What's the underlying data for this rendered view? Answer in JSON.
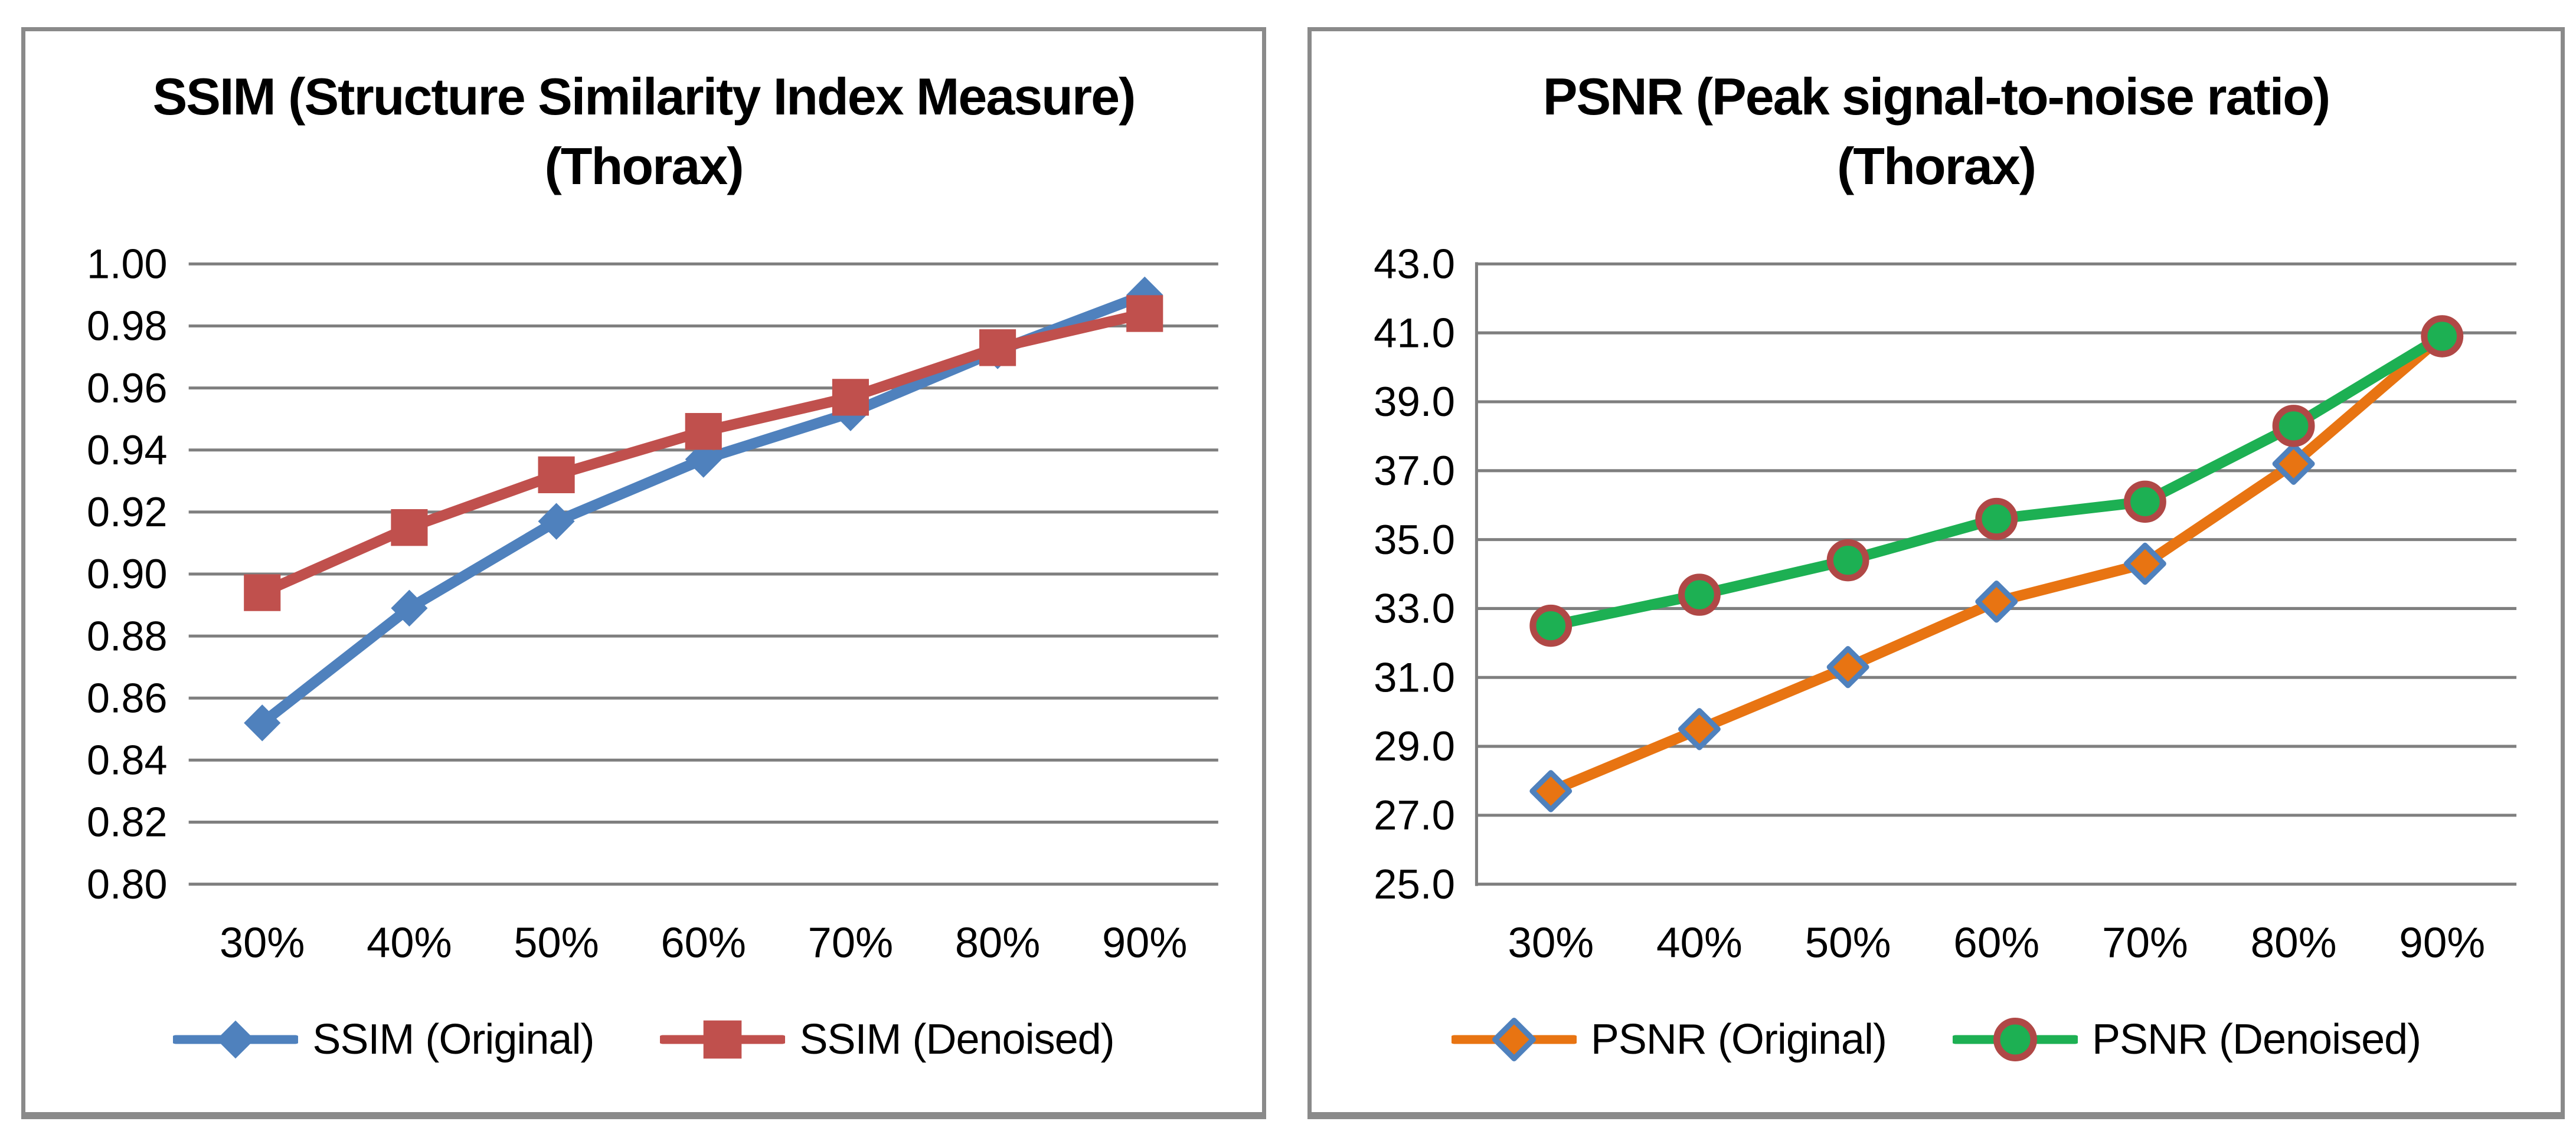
{
  "page": {
    "background": "#ffffff",
    "panel_border_color": "#8a8a8a",
    "grid_color": "#7f7f7f",
    "text_color": "#000000"
  },
  "chart_data": [
    {
      "type": "line",
      "title": "SSIM (Structure Similarity Index Measure)",
      "subtitle": "(Thorax)",
      "categories": [
        "30%",
        "40%",
        "50%",
        "60%",
        "70%",
        "80%",
        "90%"
      ],
      "y_ticks": [
        "1.00",
        "0.98",
        "0.96",
        "0.94",
        "0.92",
        "0.90",
        "0.88",
        "0.86",
        "0.84",
        "0.82",
        "0.80"
      ],
      "ylim": [
        0.8,
        1.0
      ],
      "ystep": 0.02,
      "grid": true,
      "y_axis_line": false,
      "legend_position": "bottom",
      "series": [
        {
          "name": "SSIM (Original)",
          "values": [
            0.852,
            0.889,
            0.917,
            0.937,
            0.952,
            0.972,
            0.99
          ],
          "color": "#4F81BD",
          "marker": "diamond",
          "marker_fill": "#4F81BD",
          "marker_stroke": "#4F81BD"
        },
        {
          "name": "SSIM (Denoised)",
          "values": [
            0.894,
            0.915,
            0.932,
            0.946,
            0.957,
            0.973,
            0.984
          ],
          "color": "#C0504D",
          "marker": "square",
          "marker_fill": "#C0504D",
          "marker_stroke": "#C0504D"
        }
      ]
    },
    {
      "type": "line",
      "title": "PSNR (Peak signal-to-noise ratio)",
      "subtitle": "(Thorax)",
      "categories": [
        "30%",
        "40%",
        "50%",
        "60%",
        "70%",
        "80%",
        "90%"
      ],
      "y_ticks": [
        "43.0",
        "41.0",
        "39.0",
        "37.0",
        "35.0",
        "33.0",
        "31.0",
        "29.0",
        "27.0",
        "25.0"
      ],
      "ylim": [
        25.0,
        43.0
      ],
      "ystep": 2.0,
      "grid": true,
      "y_axis_line": true,
      "legend_position": "bottom",
      "series": [
        {
          "name": "PSNR (Original)",
          "values": [
            27.7,
            29.5,
            31.3,
            33.2,
            34.3,
            37.2,
            40.9
          ],
          "color": "#E87412",
          "marker": "diamond",
          "marker_fill": "#E87412",
          "marker_stroke": "#4F81BD"
        },
        {
          "name": "PSNR (Denoised)",
          "values": [
            32.5,
            33.4,
            34.4,
            35.6,
            36.1,
            38.3,
            40.9
          ],
          "color": "#1DB053",
          "marker": "circle",
          "marker_fill": "#1DB053",
          "marker_stroke": "#B04846"
        }
      ]
    }
  ]
}
